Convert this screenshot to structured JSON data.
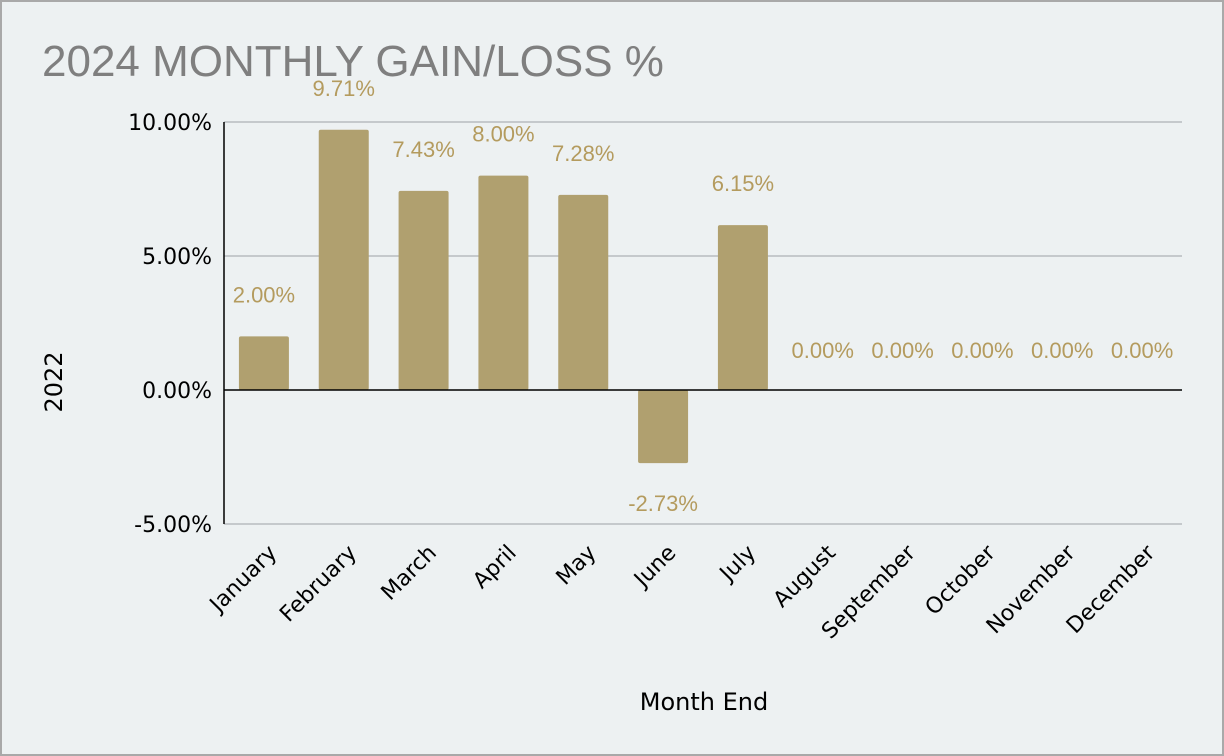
{
  "colors": {
    "bar": "#b0a06f",
    "label": "#b49b5e",
    "grid": "#b8bcbf",
    "axis": "#000000",
    "title": "#7f7f7f"
  },
  "chart_data": {
    "type": "bar",
    "title": "2024 MONTHLY GAIN/LOSS %",
    "xlabel": "Month End",
    "ylabel": "2022",
    "categories": [
      "January",
      "February",
      "March",
      "April",
      "May",
      "June",
      "July",
      "August",
      "September",
      "October",
      "November",
      "December"
    ],
    "values": [
      2.0,
      9.71,
      7.43,
      8.0,
      7.28,
      -2.73,
      6.15,
      0.0,
      0.0,
      0.0,
      0.0,
      0.0
    ],
    "value_labels": [
      "2.00%",
      "9.71%",
      "7.43%",
      "8.00%",
      "7.28%",
      "-2.73%",
      "6.15%",
      "0.00%",
      "0.00%",
      "0.00%",
      "0.00%",
      "0.00%"
    ],
    "ylim": [
      -5,
      10
    ],
    "yticks": [
      10,
      5,
      0,
      -5
    ],
    "ytick_labels": [
      "10.00%",
      "5.00%",
      "0.00%",
      "-5.00%"
    ],
    "grid": true,
    "legend": "none"
  }
}
